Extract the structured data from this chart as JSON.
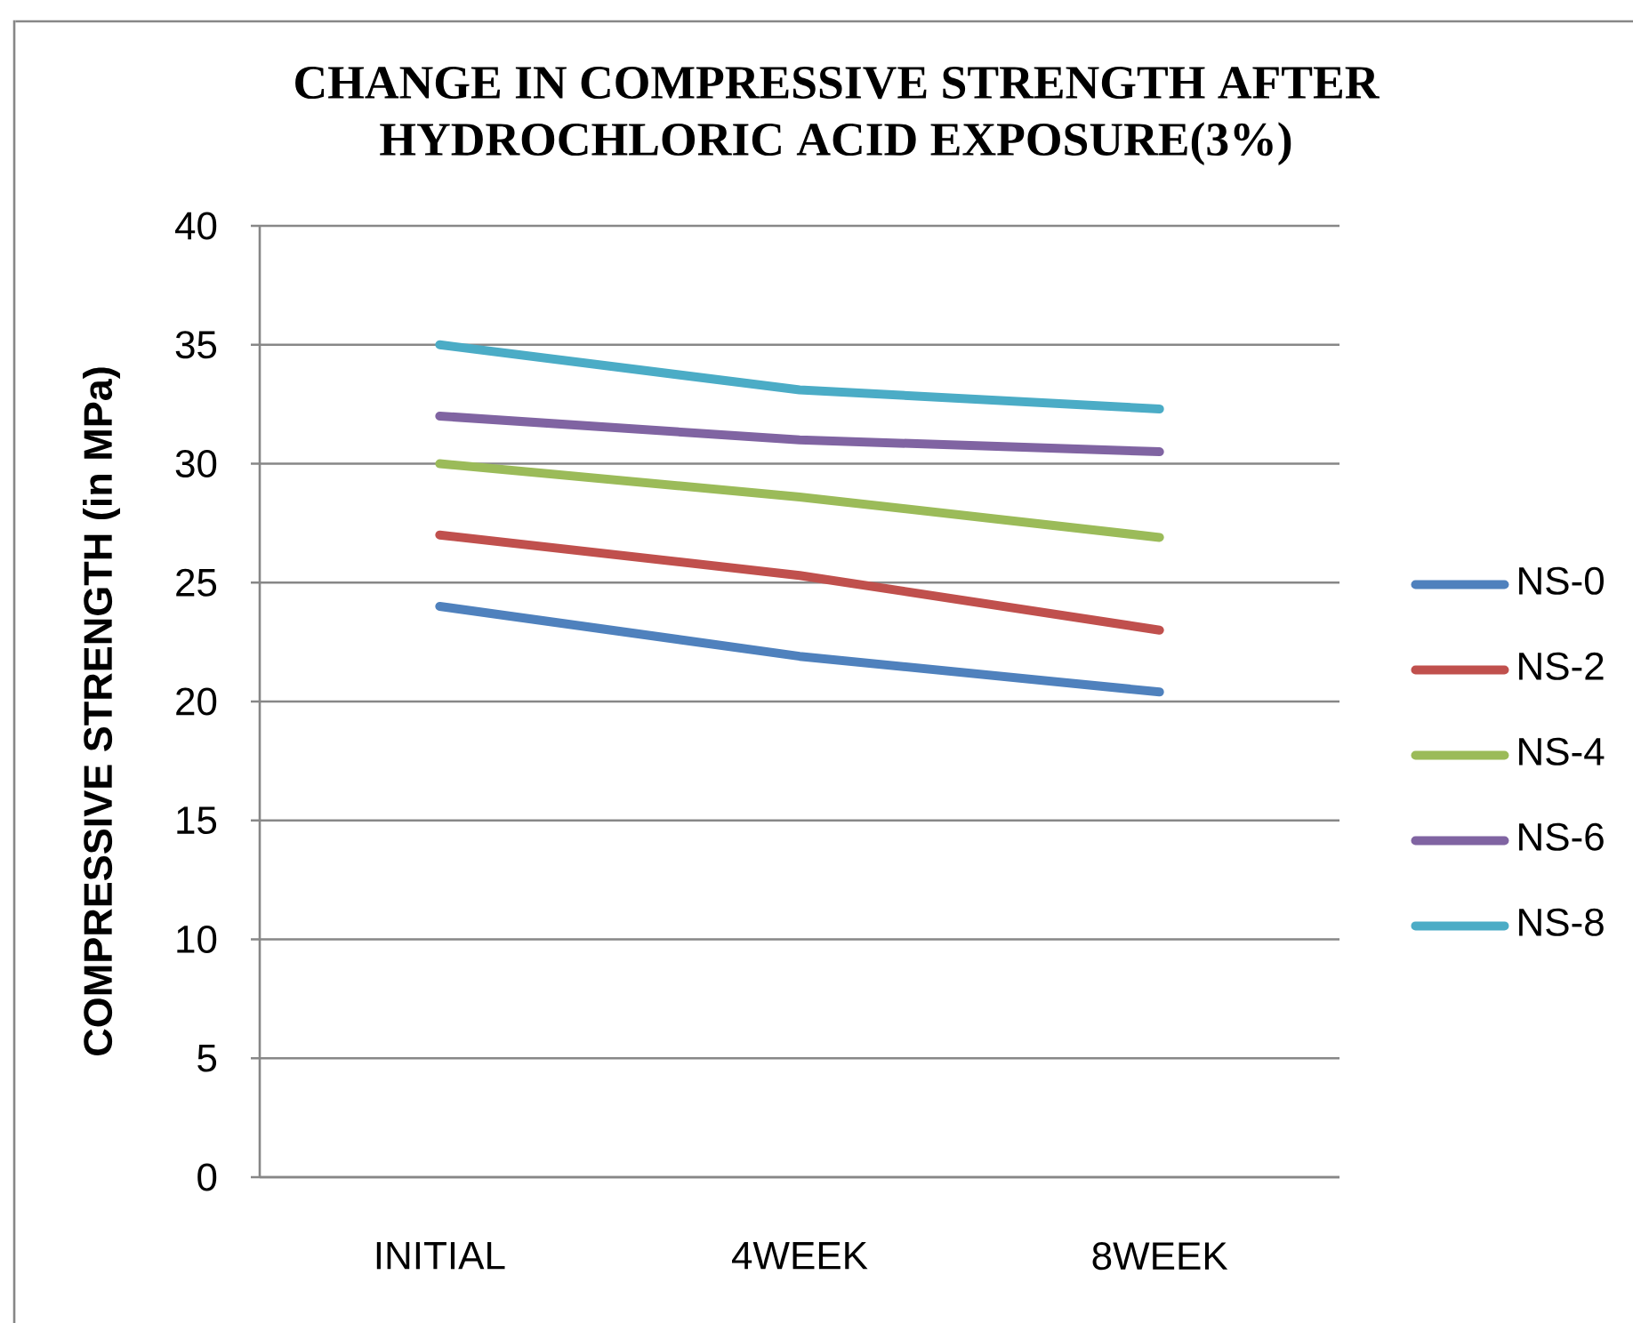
{
  "chart_data": {
    "type": "line",
    "title": "CHANGE IN COMPRESSIVE STRENGTH AFTER HYDROCHLORIC ACID EXPOSURE(3%)",
    "ylabel": "COMPRESSIVE STRENGTH (in MPa)",
    "categories": [
      "INITIAL",
      "4WEEK",
      "8WEEK"
    ],
    "series": [
      {
        "name": "NS-0",
        "color": "#4f81bd",
        "values": [
          24,
          21.9,
          20.4
        ]
      },
      {
        "name": "NS-2",
        "color": "#c0504d",
        "values": [
          27,
          25.3,
          23
        ]
      },
      {
        "name": "NS-4",
        "color": "#9bbb59",
        "values": [
          30,
          28.6,
          26.9
        ]
      },
      {
        "name": "NS-6",
        "color": "#8064a2",
        "values": [
          32,
          31,
          30.5
        ]
      },
      {
        "name": "NS-8",
        "color": "#4bacc6",
        "values": [
          35,
          33.1,
          32.3
        ]
      }
    ],
    "ylim": [
      0,
      40
    ],
    "yticks": [
      0,
      5,
      10,
      15,
      20,
      25,
      30,
      35,
      40
    ],
    "grid": "y",
    "legend": "right",
    "marker": "none",
    "line_style": "solid"
  }
}
